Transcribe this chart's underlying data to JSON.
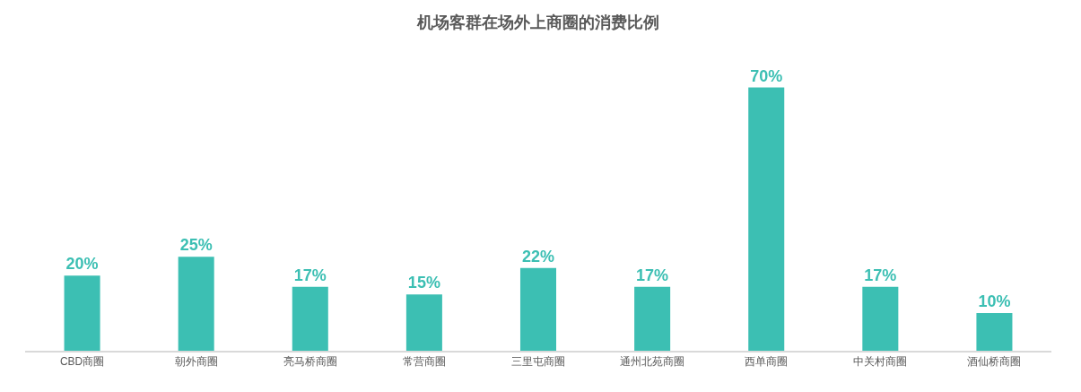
{
  "chart_data": {
    "type": "bar",
    "title": "机场客群在场外上商圈的消费比例",
    "categories": [
      "CBD商圈",
      "朝外商圈",
      "亮马桥商圈",
      "常营商圈",
      "三里屯商圈",
      "通州北苑商圈",
      "西单商圈",
      "中关村商圈",
      "酒仙桥商圈"
    ],
    "values": [
      20,
      25,
      17,
      15,
      22,
      17,
      70,
      17,
      10
    ],
    "value_labels": [
      "20%",
      "25%",
      "17%",
      "15%",
      "22%",
      "17%",
      "70%",
      "17%",
      "10%"
    ],
    "color": "#3cbfb3"
  }
}
